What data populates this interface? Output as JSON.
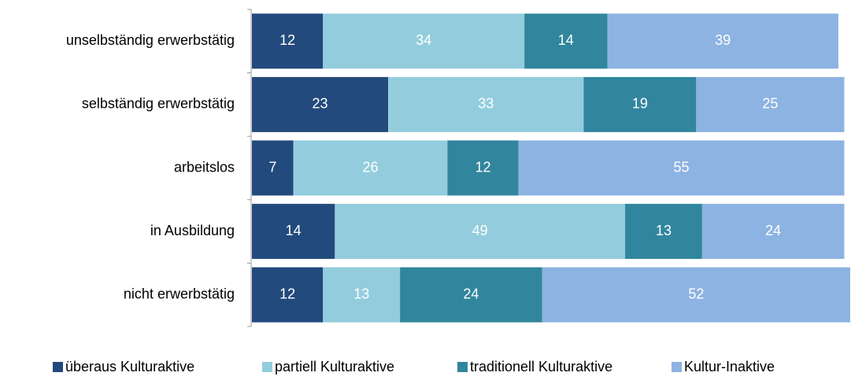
{
  "chart_data": {
    "type": "stacked-barh",
    "categories": [
      "unselbständig erwerbstätig",
      "selbständig erwerbstätig",
      "arbeitslos",
      "in Ausbildung",
      "nicht erwerbstätig"
    ],
    "series": [
      {
        "name": "überaus Kulturaktive",
        "color": "#234a7c",
        "values": [
          12,
          23,
          7,
          14,
          12
        ]
      },
      {
        "name": "partiell Kulturaktive",
        "color": "#93cddd",
        "values": [
          34,
          33,
          26,
          49,
          13
        ]
      },
      {
        "name": "traditionell Kulturaktive",
        "color": "#31869d",
        "values": [
          14,
          19,
          12,
          13,
          24
        ]
      },
      {
        "name": "Kultur-Inaktive",
        "color": "#8db3e2",
        "values": [
          39,
          25,
          55,
          24,
          52
        ]
      }
    ],
    "xlim": [
      0,
      101
    ],
    "legend": "bottom"
  }
}
